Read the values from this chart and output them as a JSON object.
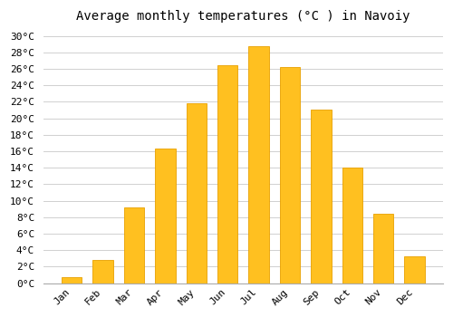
{
  "months": [
    "Jan",
    "Feb",
    "Mar",
    "Apr",
    "May",
    "Jun",
    "Jul",
    "Aug",
    "Sep",
    "Oct",
    "Nov",
    "Dec"
  ],
  "temperatures": [
    0.7,
    2.8,
    9.2,
    16.3,
    21.8,
    26.4,
    28.7,
    26.2,
    21.0,
    14.0,
    8.4,
    3.3
  ],
  "bar_color": "#FFC020",
  "bar_edge_color": "#E8A000",
  "title": "Average monthly temperatures (°C ) in Navoiy",
  "ylim": [
    0,
    31
  ],
  "ytick_max": 30,
  "ytick_step": 2,
  "background_color": "#ffffff",
  "grid_color": "#d0d0d0",
  "title_fontsize": 10,
  "tick_fontsize": 8,
  "bar_width": 0.65
}
